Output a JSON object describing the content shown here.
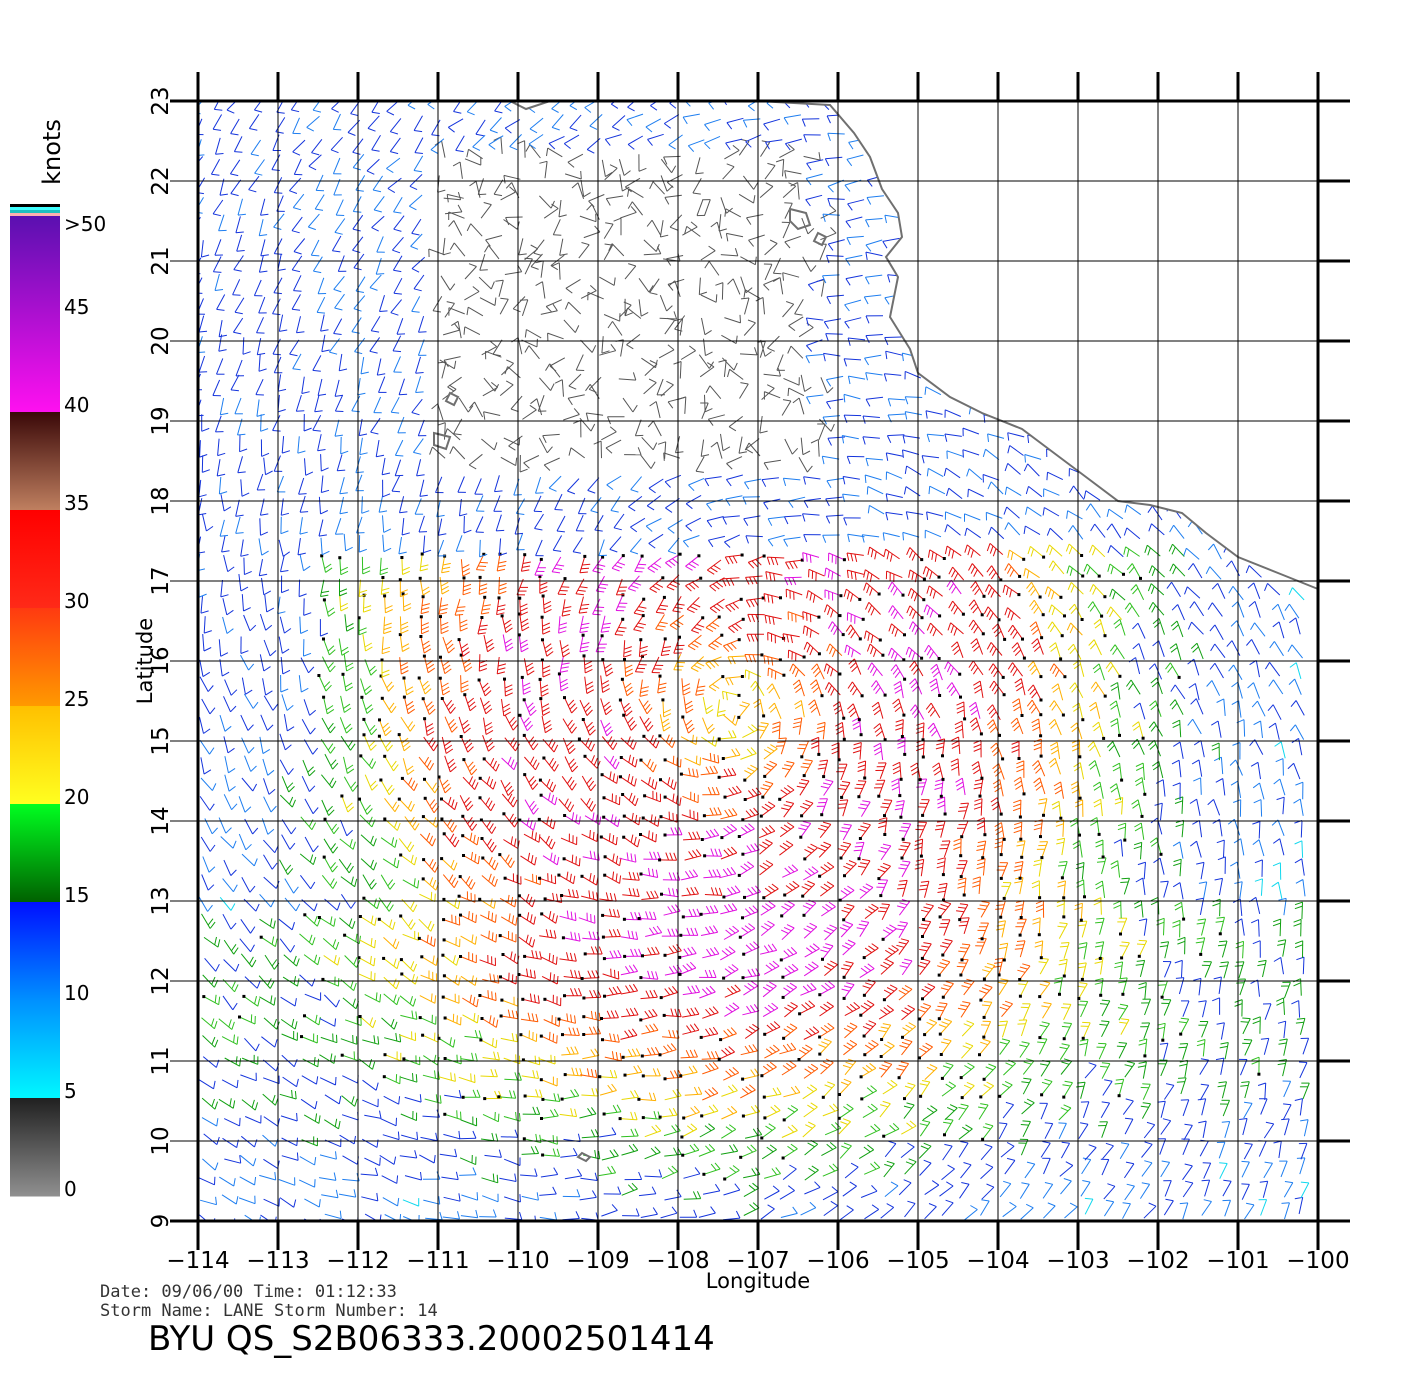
{
  "map": {
    "lon_min": -114,
    "lon_max": -100,
    "lat_min": 9,
    "lat_max": 23,
    "lon_ticks": [
      "-114",
      "-113",
      "-112",
      "-111",
      "-110",
      "-109",
      "-108",
      "-107",
      "-106",
      "-105",
      "-104",
      "-103",
      "-102",
      "-101",
      "-100"
    ],
    "lat_ticks": [
      "9",
      "10",
      "11",
      "12",
      "13",
      "14",
      "15",
      "16",
      "17",
      "18",
      "19",
      "20",
      "21",
      "22",
      "23"
    ],
    "xlabel": "Longitude",
    "ylabel": "Latitude",
    "grid": true,
    "coastline": [
      [
        -110.1,
        23.0
      ],
      [
        -109.9,
        22.9
      ],
      [
        -109.6,
        23.0
      ],
      [
        -108.9,
        23.0
      ],
      [
        -108.0,
        23.0
      ],
      [
        -107.0,
        23.0
      ],
      [
        -106.1,
        22.95
      ],
      [
        -105.8,
        22.6
      ],
      [
        -105.6,
        22.3
      ],
      [
        -105.45,
        21.9
      ],
      [
        -105.25,
        21.6
      ],
      [
        -105.2,
        21.3
      ],
      [
        -105.4,
        21.05
      ],
      [
        -105.25,
        20.8
      ],
      [
        -105.35,
        20.3
      ],
      [
        -105.1,
        19.9
      ],
      [
        -105.0,
        19.6
      ],
      [
        -104.6,
        19.3
      ],
      [
        -104.2,
        19.1
      ],
      [
        -103.7,
        18.9
      ],
      [
        -103.3,
        18.6
      ],
      [
        -102.9,
        18.3
      ],
      [
        -102.5,
        18.0
      ],
      [
        -102.1,
        17.95
      ],
      [
        -101.7,
        17.85
      ],
      [
        -101.4,
        17.6
      ],
      [
        -101.0,
        17.3
      ],
      [
        -100.5,
        17.1
      ],
      [
        -100.0,
        16.9
      ]
    ],
    "islands": [
      [
        [
          -106.6,
          21.65
        ],
        [
          -106.4,
          21.6
        ],
        [
          -106.35,
          21.45
        ],
        [
          -106.5,
          21.4
        ],
        [
          -106.6,
          21.5
        ],
        [
          -106.6,
          21.65
        ]
      ],
      [
        [
          -106.25,
          21.35
        ],
        [
          -106.15,
          21.3
        ],
        [
          -106.2,
          21.2
        ],
        [
          -106.3,
          21.25
        ],
        [
          -106.25,
          21.35
        ]
      ],
      [
        [
          -110.85,
          19.35
        ],
        [
          -110.75,
          19.3
        ],
        [
          -110.8,
          19.2
        ],
        [
          -110.9,
          19.25
        ],
        [
          -110.85,
          19.35
        ]
      ],
      [
        [
          -111.05,
          18.85
        ],
        [
          -110.85,
          18.8
        ],
        [
          -110.9,
          18.65
        ],
        [
          -111.05,
          18.7
        ],
        [
          -111.05,
          18.85
        ]
      ],
      [
        [
          -109.2,
          9.85
        ],
        [
          -109.1,
          9.8
        ],
        [
          -109.15,
          9.75
        ],
        [
          -109.25,
          9.8
        ],
        [
          -109.2,
          9.85
        ]
      ]
    ]
  },
  "wind_field": {
    "storm_center": [
      -107.3,
      15.4
    ],
    "description_colors_by_speed_knots": true
  },
  "colorbar": {
    "unit": "knots",
    "labels": [
      ">50",
      "45",
      "40",
      "35",
      "30",
      "25",
      "20",
      "15",
      "10",
      "5",
      "0"
    ],
    "segments": [
      {
        "from": 50,
        "to": 40,
        "top": "#5a10b0",
        "bottom": "#ff10f0"
      },
      {
        "from": 40,
        "to": 35,
        "top": "#3a0808",
        "bottom": "#c08060"
      },
      {
        "from": 35,
        "to": 30,
        "top": "#ff0000",
        "bottom": "#ff2a18"
      },
      {
        "from": 30,
        "to": 25,
        "top": "#ff3a10",
        "bottom": "#ff9a00"
      },
      {
        "from": 25,
        "to": 20,
        "top": "#ffc000",
        "bottom": "#ffff20"
      },
      {
        "from": 20,
        "to": 15,
        "top": "#00ff20",
        "bottom": "#006000"
      },
      {
        "from": 15,
        "to": 10,
        "top": "#0010ff",
        "bottom": "#0090ff"
      },
      {
        "from": 10,
        "to": 5,
        "top": "#0090ff",
        "bottom": "#00f8ff"
      },
      {
        "from": 5,
        "to": 0,
        "top": "#202020",
        "bottom": "#909090"
      }
    ],
    "top_stripes": [
      "#ffb0b0",
      "#20c0c0",
      "#40ffff",
      "#000000"
    ]
  },
  "info": {
    "date_line": "Date: 09/06/00   Time: 01:12:33",
    "storm_line": "Storm  Name: LANE   Storm  Number: 14",
    "product_id": "BYU  QS_S2B06333.20002501414"
  }
}
